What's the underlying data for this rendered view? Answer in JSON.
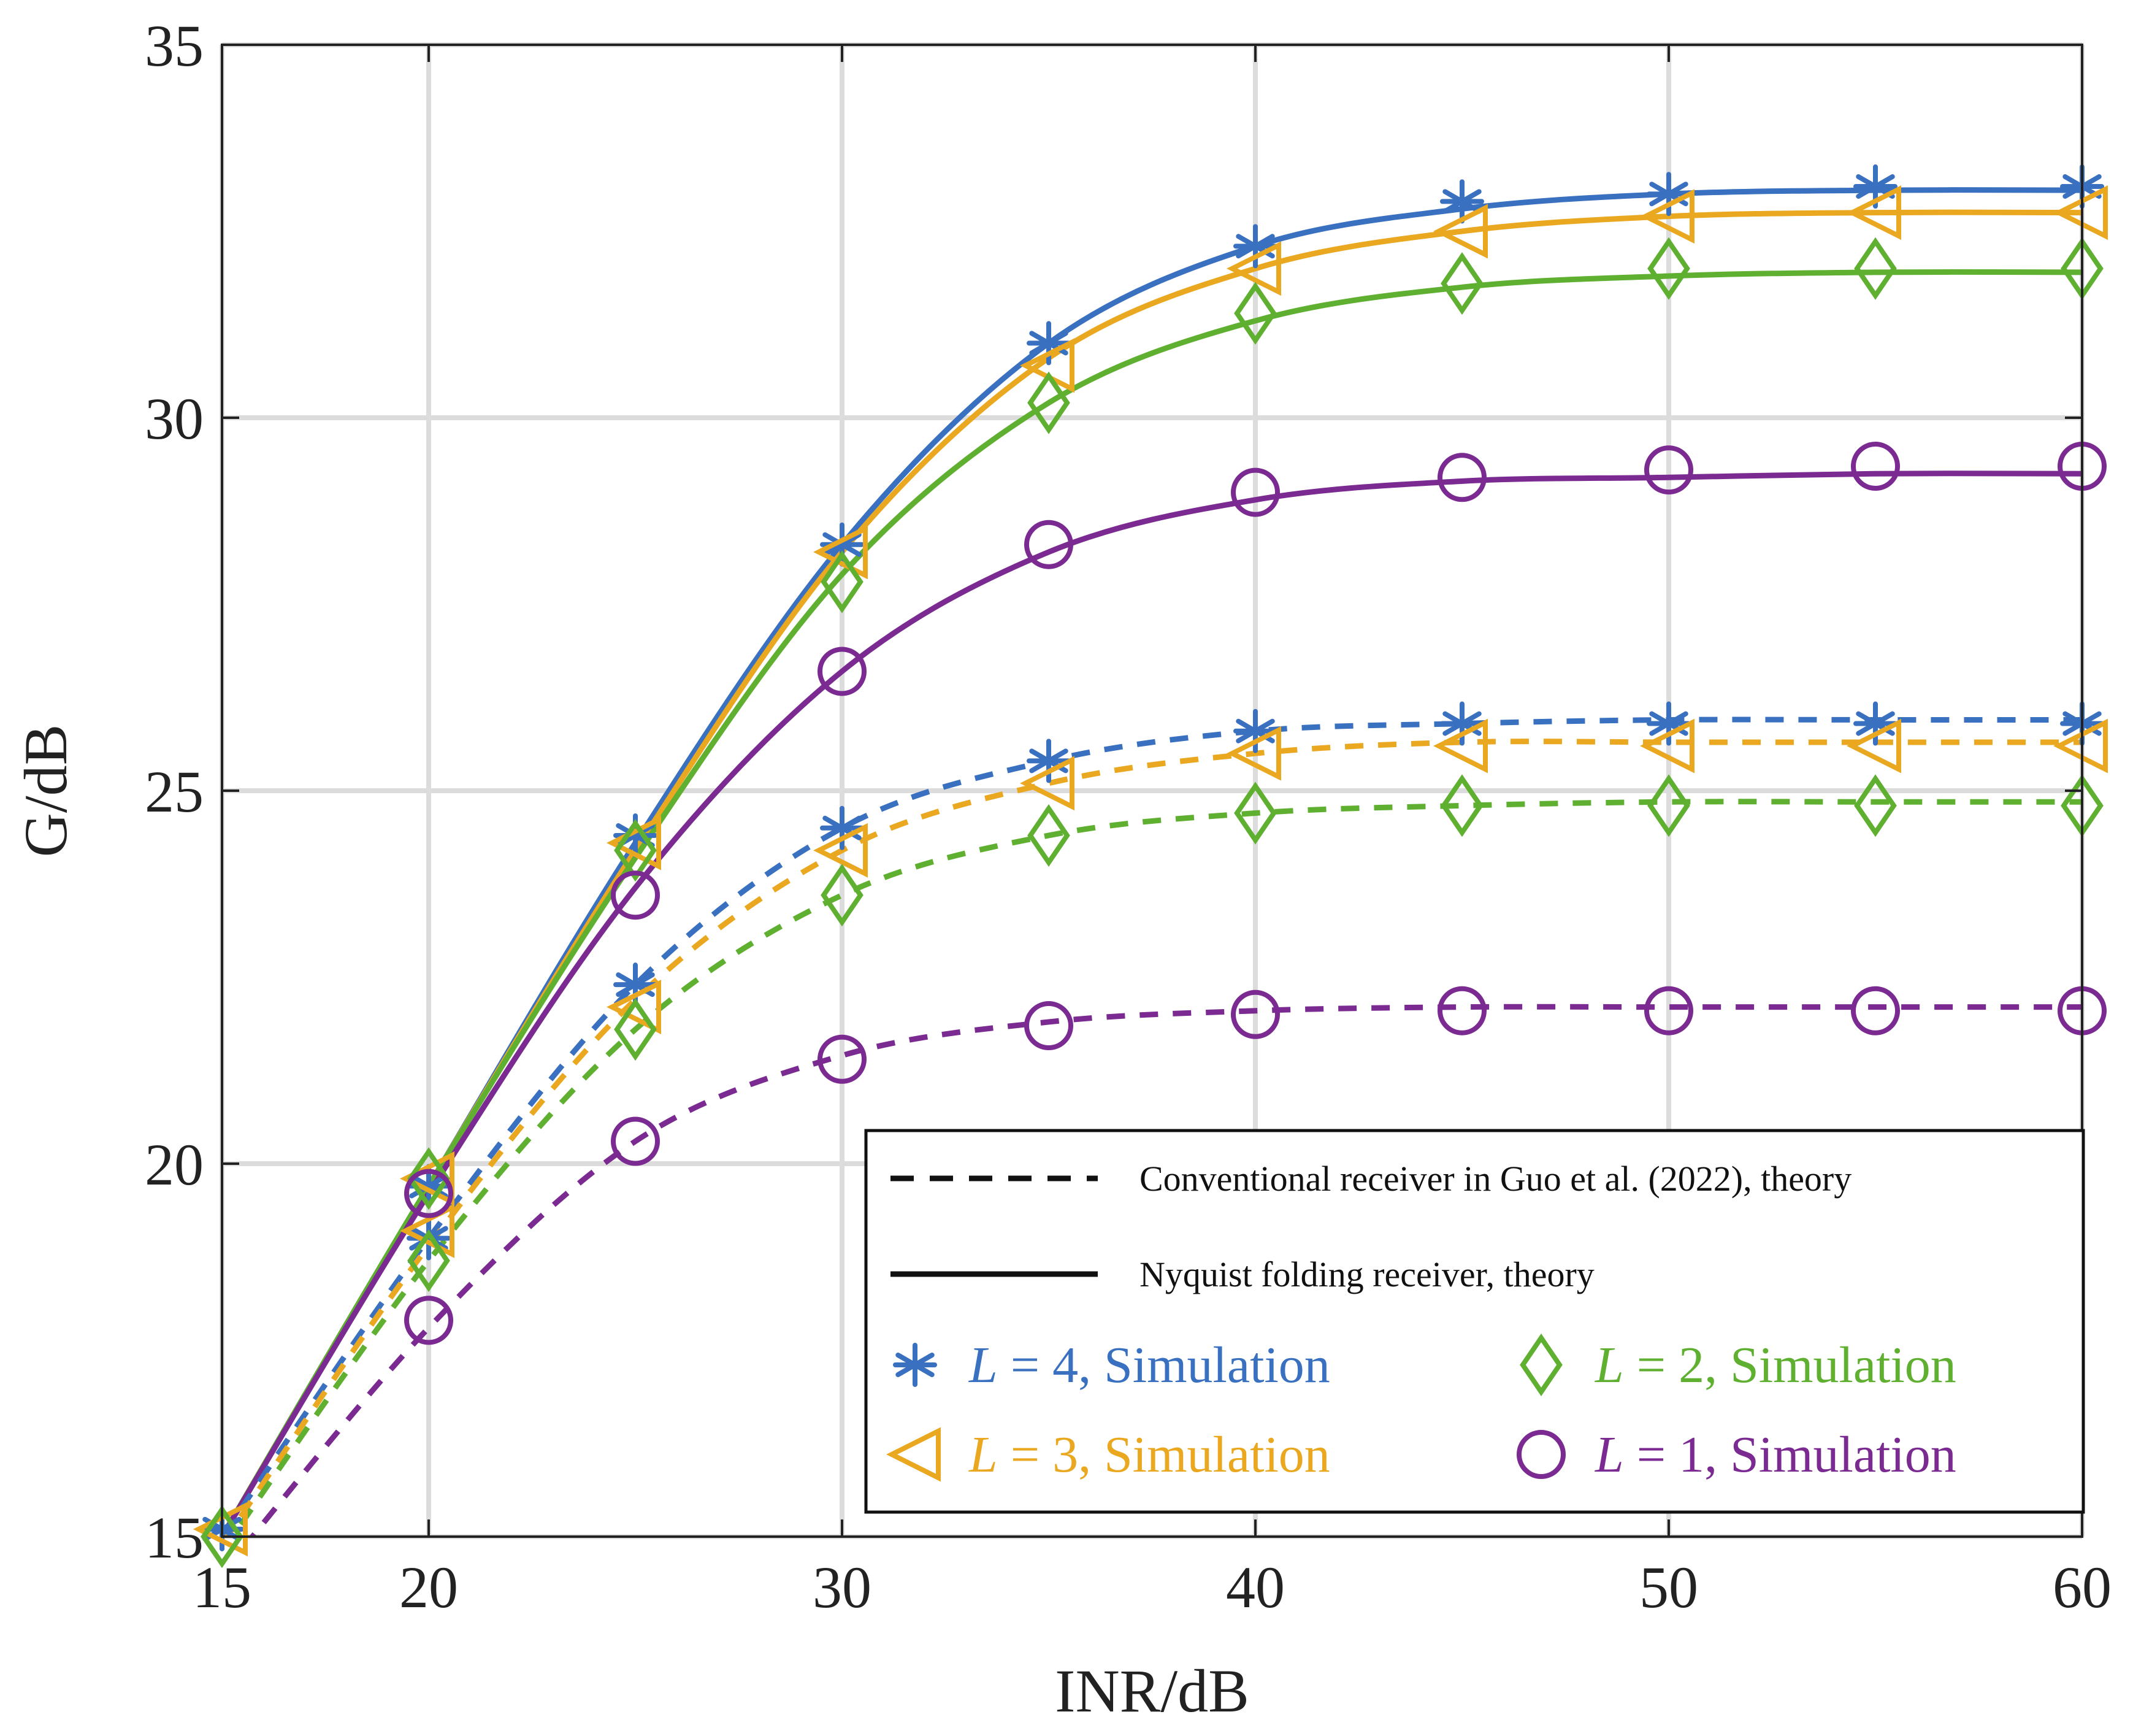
{
  "chart_data": {
    "type": "line",
    "title": "",
    "xlabel": "INR/dB",
    "ylabel": "G/dB",
    "xlim": [
      15,
      60
    ],
    "ylim": [
      15,
      35
    ],
    "xticks": [
      15,
      20,
      30,
      40,
      50,
      60
    ],
    "xtick_labels": [
      "15",
      "20",
      "30",
      "40",
      "50",
      "60"
    ],
    "yticks": [
      15,
      20,
      25,
      30,
      35
    ],
    "ytick_labels": [
      "15",
      "20",
      "25",
      "30",
      "35"
    ],
    "grid": true,
    "legend_position": "bottom-right",
    "colors": {
      "L4": "#3a70c0",
      "L3": "#e9a820",
      "L2": "#5fb030",
      "L1": "#7a2a90",
      "axis": "#222222",
      "grid": "#dcdcdc"
    },
    "theory_x": [
      15,
      20,
      25,
      30,
      35,
      40,
      45,
      50,
      55,
      60
    ],
    "series": [
      {
        "name": "L = 4, Nyquist folding receiver, theory",
        "color_key": "L4",
        "style": "solid",
        "values": [
          15.0,
          19.7,
          24.3,
          28.3,
          31.0,
          32.3,
          32.8,
          33.0,
          33.05,
          33.05
        ]
      },
      {
        "name": "L = 3, Nyquist folding receiver, theory",
        "color_key": "L3",
        "style": "solid",
        "values": [
          15.0,
          19.7,
          24.2,
          28.2,
          30.8,
          32.0,
          32.5,
          32.7,
          32.75,
          32.75
        ]
      },
      {
        "name": "L = 2, Nyquist folding receiver, theory",
        "color_key": "L2",
        "style": "solid",
        "values": [
          15.0,
          19.7,
          24.1,
          27.9,
          30.2,
          31.3,
          31.75,
          31.9,
          31.95,
          31.95
        ]
      },
      {
        "name": "L = 1, Nyquist folding receiver, theory",
        "color_key": "L1",
        "style": "solid",
        "values": [
          15.0,
          19.6,
          23.7,
          26.6,
          28.2,
          28.9,
          29.15,
          29.2,
          29.25,
          29.25
        ]
      },
      {
        "name": "L = 4, Conventional receiver, theory",
        "color_key": "L4",
        "style": "dashed",
        "values": [
          15.0,
          19.0,
          22.4,
          24.5,
          25.4,
          25.8,
          25.9,
          25.95,
          25.95,
          25.95
        ]
      },
      {
        "name": "L = 3, Conventional receiver, theory",
        "color_key": "L3",
        "style": "dashed",
        "values": [
          14.9,
          18.9,
          22.2,
          24.2,
          25.1,
          25.5,
          25.65,
          25.65,
          25.65,
          25.65
        ]
      },
      {
        "name": "L = 2, Conventional receiver, theory",
        "color_key": "L2",
        "style": "dashed",
        "values": [
          14.8,
          18.7,
          21.8,
          23.6,
          24.4,
          24.7,
          24.8,
          24.85,
          24.85,
          24.85
        ]
      },
      {
        "name": "L = 1, Conventional receiver, theory",
        "color_key": "L1",
        "style": "dashed",
        "values": [
          14.5,
          17.8,
          20.3,
          21.45,
          21.9,
          22.05,
          22.1,
          22.1,
          22.1,
          22.1
        ]
      }
    ],
    "sim_x": [
      15,
      20,
      25,
      30,
      35,
      40,
      45,
      50,
      55,
      60
    ],
    "simulations": [
      {
        "name": "L = 4, Simulation",
        "color_key": "L4",
        "marker": "asterisk",
        "nyquist": [
          15.1,
          19.7,
          24.4,
          28.3,
          31.0,
          32.3,
          32.9,
          33.0,
          33.1,
          33.1
        ],
        "conventional": [
          15.1,
          19.0,
          22.4,
          24.5,
          25.4,
          25.8,
          25.9,
          25.9,
          25.9,
          25.9
        ]
      },
      {
        "name": "L = 3, Simulation",
        "color_key": "L3",
        "marker": "triangle-left",
        "nyquist": [
          15.1,
          19.8,
          24.3,
          28.2,
          30.7,
          32.0,
          32.5,
          32.7,
          32.75,
          32.75
        ],
        "conventional": [
          15.1,
          19.1,
          22.1,
          24.2,
          25.1,
          25.5,
          25.6,
          25.6,
          25.6,
          25.6
        ]
      },
      {
        "name": "L = 2, Simulation",
        "color_key": "L2",
        "marker": "diamond",
        "nyquist": [
          15.0,
          19.8,
          24.2,
          27.8,
          30.2,
          31.4,
          31.8,
          32.0,
          32.0,
          32.0
        ],
        "conventional": [
          15.0,
          18.7,
          21.8,
          23.6,
          24.4,
          24.7,
          24.8,
          24.8,
          24.8,
          24.8
        ]
      },
      {
        "name": "L = 1, Simulation",
        "color_key": "L1",
        "marker": "circle",
        "nyquist": [
          null,
          19.6,
          23.6,
          26.6,
          28.3,
          29.0,
          29.2,
          29.3,
          29.35,
          29.35
        ],
        "conventional": [
          null,
          17.9,
          20.3,
          21.4,
          21.85,
          22.0,
          22.05,
          22.05,
          22.05,
          22.05
        ]
      }
    ],
    "legend": {
      "dashed_label": "Conventional receiver in Guo et al. (2022), theory",
      "solid_label": "Nyquist folding receiver, theory",
      "entries": [
        {
          "prefix": "L",
          "suffix": " = 4, Simulation",
          "color_key": "L4",
          "marker": "asterisk"
        },
        {
          "prefix": "L",
          "suffix": " = 2, Simulation",
          "color_key": "L2",
          "marker": "diamond"
        },
        {
          "prefix": "L",
          "suffix": " = 3, Simulation",
          "color_key": "L3",
          "marker": "triangle-left"
        },
        {
          "prefix": "L",
          "suffix": " = 1, Simulation",
          "color_key": "L1",
          "marker": "circle"
        }
      ]
    }
  }
}
